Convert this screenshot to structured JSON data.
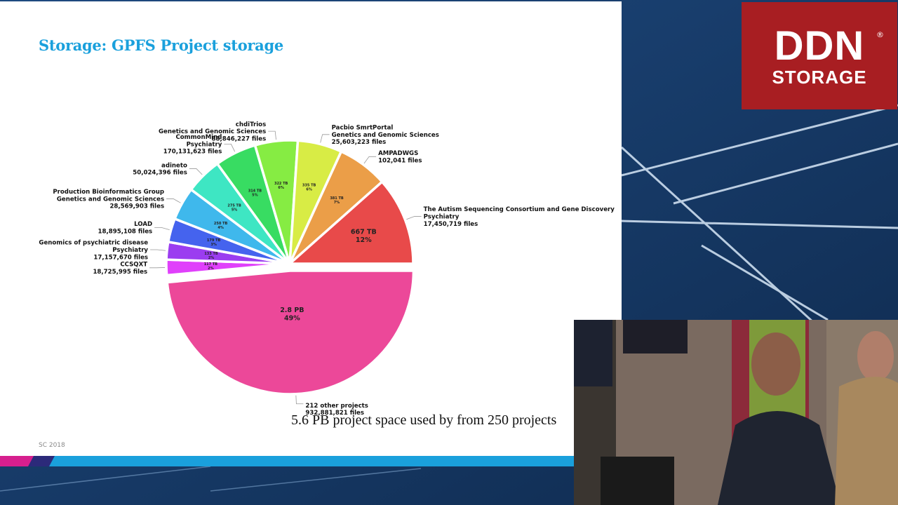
{
  "slide": {
    "title": "Storage: GPFS Project storage",
    "subtitle": "5.6 PB project space used by from 250 projects",
    "footer": "SC 2018"
  },
  "logo": {
    "line1": "DDN",
    "reg": "®",
    "line2": "STORAGE"
  },
  "chart_data": {
    "type": "pie",
    "title": "",
    "slices": [
      {
        "value": 2.8,
        "unit": "PB",
        "size_label": "2.8 PB",
        "percent": "49%",
        "label_lines": [
          "212 other projects",
          "932,881,821 files"
        ],
        "color": "#ec4899"
      },
      {
        "value": 117,
        "unit": "TB",
        "size_label": "117 TB",
        "percent": "2%",
        "label_lines": [
          "CCSQXT",
          "18,725,995 files"
        ],
        "color": "#e040fb"
      },
      {
        "value": 133,
        "unit": "TB",
        "size_label": "133 TB",
        "percent": "2%",
        "label_lines": [
          "Genomics of psychiatric disease",
          "Psychiatry",
          "17,157,670 files"
        ],
        "color": "#9b3df0"
      },
      {
        "value": 179,
        "unit": "TB",
        "size_label": "179 TB",
        "percent": "3%",
        "label_lines": [
          "LOAD",
          "18,895,108 files"
        ],
        "color": "#4563ee"
      },
      {
        "value": 250,
        "unit": "TB",
        "size_label": "250 TB",
        "percent": "4%",
        "label_lines": [
          "Production Bioinformatics Group",
          "Genetics and Genomic Sciences",
          "28,569,903 files"
        ],
        "color": "#3fb8ec"
      },
      {
        "value": 275,
        "unit": "TB",
        "size_label": "275 TB",
        "percent": "5%",
        "label_lines": [
          "adineto",
          "50,024,396 files"
        ],
        "color": "#3ee6c3"
      },
      {
        "value": 314,
        "unit": "TB",
        "size_label": "314 TB",
        "percent": "5%",
        "label_lines": [
          "CommonMind",
          "Psychiatry",
          "170,131,623 files"
        ],
        "color": "#38dc62"
      },
      {
        "value": 322,
        "unit": "TB",
        "size_label": "322 TB",
        "percent": "6%",
        "label_lines": [
          "chdiTrios",
          "Genetics and Genomic Sciences",
          "88,846,227 files"
        ],
        "color": "#86ec43"
      },
      {
        "value": 335,
        "unit": "TB",
        "size_label": "335 TB",
        "percent": "6%",
        "label_lines": [
          "Pacbio SmrtPortal",
          "Genetics and Genomic Sciences",
          "25,603,223 files"
        ],
        "color": "#d8ec45"
      },
      {
        "value": 381,
        "unit": "TB",
        "size_label": "381 TB",
        "percent": "7%",
        "label_lines": [
          "AMPADWGS",
          "102,041 files"
        ],
        "color": "#eb9e48"
      },
      {
        "value": 667,
        "unit": "TB",
        "size_label": "667 TB",
        "percent": "12%",
        "label_lines": [
          "The Autism Sequencing Consortium and Gene Discovery",
          "Psychiatry",
          "17,450,719 files"
        ],
        "color": "#e84a4a"
      }
    ]
  }
}
